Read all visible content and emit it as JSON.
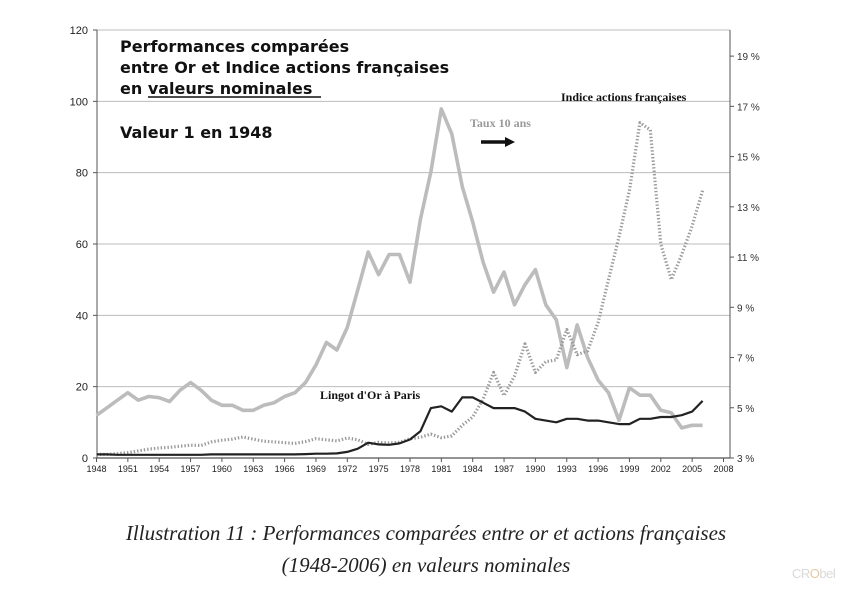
{
  "chart_data": {
    "type": "line",
    "annotation_title": [
      "Performances comparées",
      "entre Or et Indice actions françaises",
      "en valeurs nominales"
    ],
    "annotation_base": "Valeur 1 en 1948",
    "labels": {
      "indice": "Indice actions françaises",
      "taux": "Taux 10 ans",
      "or": "Lingot d'Or à Paris"
    },
    "y_left": {
      "ticks": [
        "0",
        "20",
        "40",
        "60",
        "80",
        "100",
        "120"
      ],
      "range": [
        0,
        120
      ]
    },
    "y_right": {
      "ticks": [
        "3 %",
        "5 %",
        "7 %",
        "9 %",
        "11 %",
        "13 %",
        "15 %",
        "17 %",
        "19 %"
      ],
      "range": [
        3,
        20.04
      ]
    },
    "x_axis": {
      "ticks": [
        "1948",
        "1951",
        "1954",
        "1957",
        "1960",
        "1963",
        "1966",
        "1969",
        "1972",
        "1975",
        "1978",
        "1981",
        "1984",
        "1987",
        "1990",
        "1993",
        "1996",
        "1999",
        "2002",
        "2005",
        "2008"
      ],
      "range": [
        1948,
        2010
      ]
    },
    "series": [
      {
        "name": "Taux 10 ans",
        "axis": "right",
        "color": "#bcbcbc",
        "style": "solid",
        "x": [
          1948,
          1949,
          1950,
          1951,
          1952,
          1953,
          1954,
          1955,
          1956,
          1957,
          1958,
          1959,
          1960,
          1961,
          1962,
          1963,
          1964,
          1965,
          1966,
          1967,
          1968,
          1969,
          1970,
          1971,
          1972,
          1973,
          1974,
          1975,
          1976,
          1977,
          1978,
          1979,
          1980,
          1981,
          1982,
          1983,
          1984,
          1985,
          1986,
          1987,
          1988,
          1989,
          1990,
          1991,
          1992,
          1993,
          1994,
          1995,
          1996,
          1997,
          1998,
          1999,
          2000,
          2001,
          2002,
          2003,
          2004,
          2005,
          2006
        ],
        "values": [
          4.7,
          5.0,
          5.3,
          5.6,
          5.3,
          5.45,
          5.4,
          5.25,
          5.7,
          6.0,
          5.7,
          5.3,
          5.1,
          5.1,
          4.9,
          4.9,
          5.1,
          5.2,
          5.45,
          5.6,
          6.0,
          6.7,
          7.6,
          7.3,
          8.2,
          9.7,
          11.2,
          10.3,
          11.1,
          11.1,
          10.0,
          12.5,
          14.4,
          16.9,
          15.9,
          13.8,
          12.4,
          10.8,
          9.6,
          10.4,
          9.1,
          9.9,
          10.5,
          9.1,
          8.5,
          6.6,
          8.3,
          7.0,
          6.1,
          5.6,
          4.5,
          5.8,
          5.5,
          5.5,
          4.9,
          4.8,
          4.2,
          4.3,
          4.3
        ]
      },
      {
        "name": "Indice actions françaises",
        "axis": "left",
        "color": "#9a9a9a",
        "style": "dotted",
        "x": [
          1948,
          1949,
          1950,
          1951,
          1952,
          1953,
          1954,
          1955,
          1956,
          1957,
          1958,
          1959,
          1960,
          1961,
          1962,
          1963,
          1964,
          1965,
          1966,
          1967,
          1968,
          1969,
          1970,
          1971,
          1972,
          1973,
          1974,
          1975,
          1976,
          1977,
          1978,
          1979,
          1980,
          1981,
          1982,
          1983,
          1984,
          1985,
          1986,
          1987,
          1988,
          1989,
          1990,
          1991,
          1992,
          1993,
          1994,
          1995,
          1996,
          1997,
          1998,
          1999,
          2000,
          2001,
          2002,
          2003,
          2004,
          2005,
          2006
        ],
        "values": [
          1,
          1,
          1.2,
          1.5,
          2,
          2.5,
          2.8,
          3,
          3.3,
          3.6,
          3.5,
          4.5,
          5,
          5.3,
          5.9,
          5.3,
          4.7,
          4.5,
          4.3,
          4.1,
          4.6,
          5.4,
          5.1,
          4.8,
          5.6,
          5.1,
          3.8,
          4.4,
          4.2,
          4.4,
          5.4,
          5.8,
          6.7,
          5.7,
          6.2,
          9.2,
          11.5,
          16.5,
          24,
          17.5,
          23,
          32,
          24,
          27,
          27.5,
          36,
          29,
          30,
          38,
          50,
          62,
          75,
          94,
          92,
          60,
          50,
          57,
          65,
          75
        ]
      },
      {
        "name": "Lingot d'Or à Paris",
        "axis": "left",
        "color": "#222222",
        "style": "solid",
        "x": [
          1948,
          1949,
          1950,
          1951,
          1952,
          1953,
          1954,
          1955,
          1956,
          1957,
          1958,
          1959,
          1960,
          1961,
          1962,
          1963,
          1964,
          1965,
          1966,
          1967,
          1968,
          1969,
          1970,
          1971,
          1972,
          1973,
          1974,
          1975,
          1976,
          1977,
          1978,
          1979,
          1980,
          1981,
          1982,
          1983,
          1984,
          1985,
          1986,
          1987,
          1988,
          1989,
          1990,
          1991,
          1992,
          1993,
          1994,
          1995,
          1996,
          1997,
          1998,
          1999,
          2000,
          2001,
          2002,
          2003,
          2004,
          2005,
          2006
        ],
        "values": [
          1,
          1,
          0.9,
          0.9,
          0.9,
          0.9,
          0.9,
          0.9,
          0.9,
          0.9,
          0.9,
          1,
          1,
          1,
          1,
          1,
          1,
          1,
          1,
          1,
          1.1,
          1.2,
          1.2,
          1.3,
          1.7,
          2.6,
          4.3,
          3.8,
          3.7,
          4.1,
          5.2,
          7.5,
          14,
          14.5,
          13,
          17,
          17,
          15.5,
          14,
          14,
          14,
          13,
          11,
          10.5,
          10,
          11,
          11,
          10.5,
          10.5,
          10,
          9.5,
          9.5,
          11,
          11,
          11.5,
          11.5,
          12,
          13,
          16
        ]
      }
    ],
    "grid": "horizontal",
    "legend": "none"
  },
  "caption": {
    "line1": "Illustration 11 : Performances comparées entre or et actions françaises",
    "line2": "(1948-2006) en valeurs nominales"
  },
  "watermark": {
    "a": "CR",
    "b": "O",
    "c": "bel"
  }
}
